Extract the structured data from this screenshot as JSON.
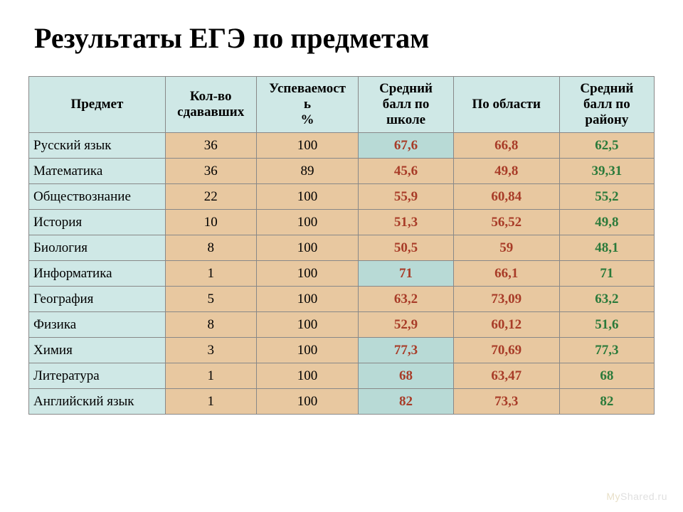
{
  "title": "Результаты ЕГЭ по предметам",
  "columns": [
    {
      "label": "Предмет",
      "bg": "#cfe8e6"
    },
    {
      "label": "Кол-во сдававших",
      "bg": "#cfe8e6"
    },
    {
      "label": "Успеваемость\n%",
      "bg": "#cfe8e6"
    },
    {
      "label": "Средний балл по школе",
      "bg": "#cfe8e6"
    },
    {
      "label": "По области",
      "bg": "#cfe8e6"
    },
    {
      "label": "Средний балл по району",
      "bg": "#cfe8e6"
    }
  ],
  "colors": {
    "header_bg": "#cfe8e6",
    "tan_bg": "#e8c8a0",
    "teal_bg": "#b8dad6",
    "white_bg": "#ffffff",
    "text_black": "#000000",
    "text_red": "#a83c28",
    "text_green": "#2a7a3a",
    "border": "#888888"
  },
  "rows": [
    {
      "subject": {
        "v": "Русский язык",
        "bg": "#cfe8e6",
        "c": "#000000"
      },
      "count": {
        "v": "36",
        "bg": "#e8c8a0",
        "c": "#000000"
      },
      "pass": {
        "v": "100",
        "bg": "#e8c8a0",
        "c": "#000000"
      },
      "school": {
        "v": "67,6",
        "bg": "#b8dad6",
        "c": "#a83c28"
      },
      "region": {
        "v": "66,8",
        "bg": "#e8c8a0",
        "c": "#a83c28"
      },
      "district": {
        "v": "62,5",
        "bg": "#e8c8a0",
        "c": "#2a7a3a"
      }
    },
    {
      "subject": {
        "v": "Математика",
        "bg": "#cfe8e6",
        "c": "#000000"
      },
      "count": {
        "v": "36",
        "bg": "#e8c8a0",
        "c": "#000000"
      },
      "pass": {
        "v": "89",
        "bg": "#e8c8a0",
        "c": "#000000"
      },
      "school": {
        "v": "45,6",
        "bg": "#e8c8a0",
        "c": "#a83c28"
      },
      "region": {
        "v": "49,8",
        "bg": "#e8c8a0",
        "c": "#a83c28"
      },
      "district": {
        "v": "39,31",
        "bg": "#e8c8a0",
        "c": "#2a7a3a"
      }
    },
    {
      "subject": {
        "v": "Обществознание",
        "bg": "#cfe8e6",
        "c": "#000000"
      },
      "count": {
        "v": "22",
        "bg": "#e8c8a0",
        "c": "#000000"
      },
      "pass": {
        "v": "100",
        "bg": "#e8c8a0",
        "c": "#000000"
      },
      "school": {
        "v": "55,9",
        "bg": "#e8c8a0",
        "c": "#a83c28"
      },
      "region": {
        "v": "60,84",
        "bg": "#e8c8a0",
        "c": "#a83c28"
      },
      "district": {
        "v": "55,2",
        "bg": "#e8c8a0",
        "c": "#2a7a3a"
      }
    },
    {
      "subject": {
        "v": "История",
        "bg": "#cfe8e6",
        "c": "#000000"
      },
      "count": {
        "v": "10",
        "bg": "#e8c8a0",
        "c": "#000000"
      },
      "pass": {
        "v": "100",
        "bg": "#e8c8a0",
        "c": "#000000"
      },
      "school": {
        "v": "51,3",
        "bg": "#e8c8a0",
        "c": "#a83c28"
      },
      "region": {
        "v": "56,52",
        "bg": "#e8c8a0",
        "c": "#a83c28"
      },
      "district": {
        "v": "49,8",
        "bg": "#e8c8a0",
        "c": "#2a7a3a"
      }
    },
    {
      "subject": {
        "v": "Биология",
        "bg": "#cfe8e6",
        "c": "#000000"
      },
      "count": {
        "v": "8",
        "bg": "#e8c8a0",
        "c": "#000000"
      },
      "pass": {
        "v": "100",
        "bg": "#e8c8a0",
        "c": "#000000"
      },
      "school": {
        "v": "50,5",
        "bg": "#e8c8a0",
        "c": "#a83c28"
      },
      "region": {
        "v": "59",
        "bg": "#e8c8a0",
        "c": "#a83c28"
      },
      "district": {
        "v": "48,1",
        "bg": "#e8c8a0",
        "c": "#2a7a3a"
      }
    },
    {
      "subject": {
        "v": "Информатика",
        "bg": "#cfe8e6",
        "c": "#000000"
      },
      "count": {
        "v": "1",
        "bg": "#e8c8a0",
        "c": "#000000"
      },
      "pass": {
        "v": "100",
        "bg": "#e8c8a0",
        "c": "#000000"
      },
      "school": {
        "v": "71",
        "bg": "#b8dad6",
        "c": "#a83c28"
      },
      "region": {
        "v": "66,1",
        "bg": "#e8c8a0",
        "c": "#a83c28"
      },
      "district": {
        "v": "71",
        "bg": "#e8c8a0",
        "c": "#2a7a3a"
      }
    },
    {
      "subject": {
        "v": "География",
        "bg": "#cfe8e6",
        "c": "#000000"
      },
      "count": {
        "v": "5",
        "bg": "#e8c8a0",
        "c": "#000000"
      },
      "pass": {
        "v": "100",
        "bg": "#e8c8a0",
        "c": "#000000"
      },
      "school": {
        "v": "63,2",
        "bg": "#e8c8a0",
        "c": "#a83c28"
      },
      "region": {
        "v": "73,09",
        "bg": "#e8c8a0",
        "c": "#a83c28"
      },
      "district": {
        "v": "63,2",
        "bg": "#e8c8a0",
        "c": "#2a7a3a"
      }
    },
    {
      "subject": {
        "v": "Физика",
        "bg": "#cfe8e6",
        "c": "#000000"
      },
      "count": {
        "v": "8",
        "bg": "#e8c8a0",
        "c": "#000000"
      },
      "pass": {
        "v": "100",
        "bg": "#e8c8a0",
        "c": "#000000"
      },
      "school": {
        "v": "52,9",
        "bg": "#e8c8a0",
        "c": "#a83c28"
      },
      "region": {
        "v": "60,12",
        "bg": "#e8c8a0",
        "c": "#a83c28"
      },
      "district": {
        "v": "51,6",
        "bg": "#e8c8a0",
        "c": "#2a7a3a"
      }
    },
    {
      "subject": {
        "v": "Химия",
        "bg": "#cfe8e6",
        "c": "#000000"
      },
      "count": {
        "v": "3",
        "bg": "#e8c8a0",
        "c": "#000000"
      },
      "pass": {
        "v": "100",
        "bg": "#e8c8a0",
        "c": "#000000"
      },
      "school": {
        "v": "77,3",
        "bg": "#b8dad6",
        "c": "#a83c28"
      },
      "region": {
        "v": "70,69",
        "bg": "#e8c8a0",
        "c": "#a83c28"
      },
      "district": {
        "v": "77,3",
        "bg": "#e8c8a0",
        "c": "#2a7a3a"
      }
    },
    {
      "subject": {
        "v": "Литература",
        "bg": "#cfe8e6",
        "c": "#000000"
      },
      "count": {
        "v": "1",
        "bg": "#e8c8a0",
        "c": "#000000"
      },
      "pass": {
        "v": "100",
        "bg": "#e8c8a0",
        "c": "#000000"
      },
      "school": {
        "v": "68",
        "bg": "#b8dad6",
        "c": "#a83c28"
      },
      "region": {
        "v": "63,47",
        "bg": "#e8c8a0",
        "c": "#a83c28"
      },
      "district": {
        "v": "68",
        "bg": "#e8c8a0",
        "c": "#2a7a3a"
      }
    },
    {
      "subject": {
        "v": "Английский язык",
        "bg": "#cfe8e6",
        "c": "#000000"
      },
      "count": {
        "v": "1",
        "bg": "#e8c8a0",
        "c": "#000000"
      },
      "pass": {
        "v": "100",
        "bg": "#e8c8a0",
        "c": "#000000"
      },
      "school": {
        "v": "82",
        "bg": "#b8dad6",
        "c": "#a83c28"
      },
      "region": {
        "v": "73,3",
        "bg": "#e8c8a0",
        "c": "#a83c28"
      },
      "district": {
        "v": "82",
        "bg": "#e8c8a0",
        "c": "#2a7a3a"
      }
    }
  ],
  "watermark": {
    "prefix": "My",
    "suffix": "Shared.ru"
  }
}
